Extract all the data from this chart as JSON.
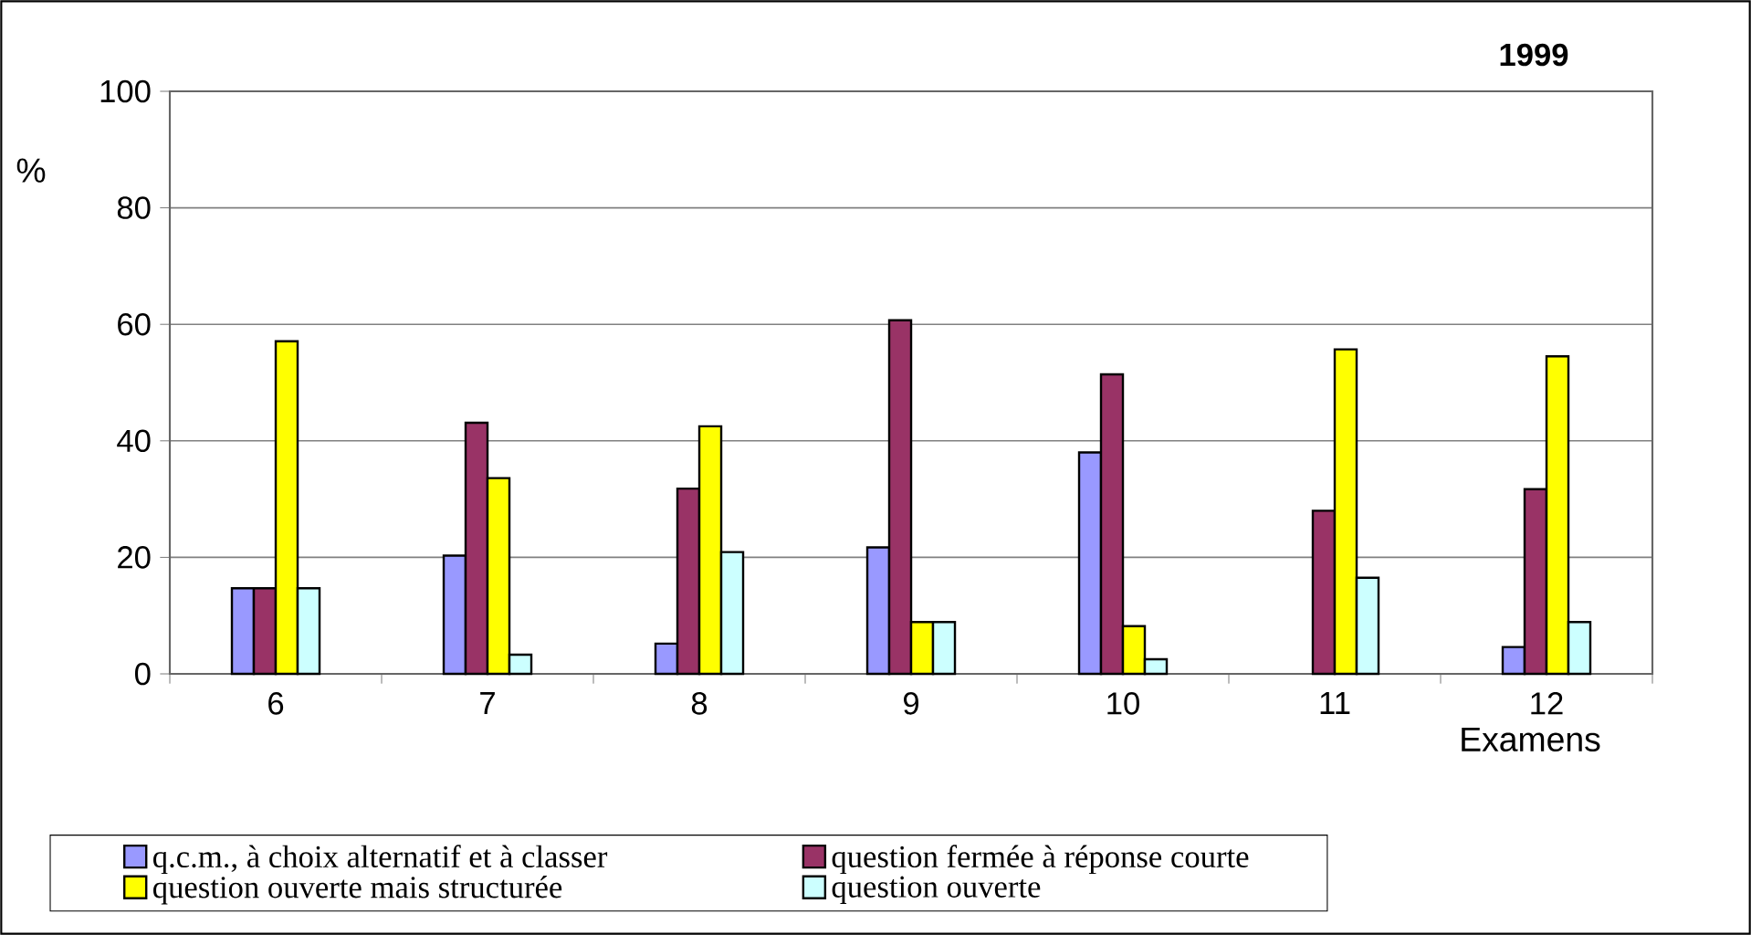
{
  "chart_data": {
    "type": "bar",
    "title": "1999",
    "xlabel": "Examens",
    "ylabel": "%",
    "categories": [
      "6",
      "7",
      "8",
      "9",
      "10",
      "11",
      "12"
    ],
    "series": [
      {
        "name": "q.c.m., à choix alternatif et à classer",
        "color": "#9999ff",
        "values": [
          14.7,
          20.3,
          5.2,
          21.7,
          38.0,
          null,
          4.6
        ]
      },
      {
        "name": "question fermée à réponse courte",
        "color": "#993366",
        "values": [
          14.7,
          43.1,
          31.8,
          60.7,
          51.4,
          28.0,
          31.7
        ]
      },
      {
        "name": "question ouverte mais structurée",
        "color": "#ffff00",
        "values": [
          57.1,
          33.6,
          42.5,
          8.9,
          8.2,
          55.7,
          54.5
        ]
      },
      {
        "name": "question ouverte",
        "color": "#ccffff",
        "values": [
          14.7,
          3.3,
          20.9,
          8.9,
          2.5,
          16.5,
          8.9
        ]
      }
    ],
    "ylim": [
      0,
      100
    ],
    "yticks": [
      0,
      20,
      40,
      60,
      80,
      100
    ],
    "grid": "y",
    "legend": "bottom"
  }
}
